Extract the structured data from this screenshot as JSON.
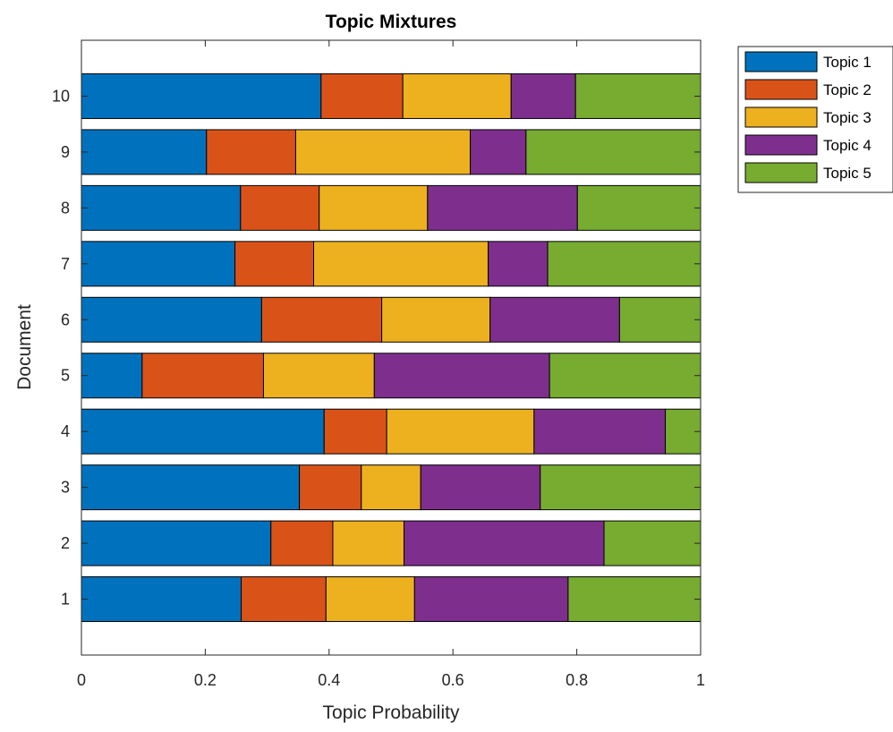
{
  "chart_data": {
    "type": "bar",
    "orientation": "horizontal",
    "stacked": true,
    "title": "Topic Mixtures",
    "xlabel": "Topic Probability",
    "ylabel": "Document",
    "xlim": [
      0,
      1
    ],
    "ylim": [
      0,
      11
    ],
    "xticks": [
      "0",
      "0.2",
      "0.4",
      "0.6",
      "0.8",
      "1"
    ],
    "categories": [
      "1",
      "2",
      "3",
      "4",
      "5",
      "6",
      "7",
      "8",
      "9",
      "10"
    ],
    "grid": false,
    "legend_position": "outside-top-right",
    "series": [
      {
        "name": "Topic 1",
        "color": "#0072BD",
        "values": [
          0.258,
          0.306,
          0.352,
          0.392,
          0.098,
          0.291,
          0.248,
          0.257,
          0.202,
          0.387
        ]
      },
      {
        "name": "Topic 2",
        "color": "#D95319",
        "values": [
          0.137,
          0.1,
          0.1,
          0.101,
          0.196,
          0.194,
          0.127,
          0.127,
          0.144,
          0.132
        ]
      },
      {
        "name": "Topic 3",
        "color": "#EDB120",
        "values": [
          0.143,
          0.115,
          0.096,
          0.238,
          0.179,
          0.175,
          0.282,
          0.175,
          0.282,
          0.175
        ]
      },
      {
        "name": "Topic 4",
        "color": "#7E2F8E",
        "values": [
          0.248,
          0.323,
          0.193,
          0.212,
          0.283,
          0.209,
          0.096,
          0.242,
          0.09,
          0.104
        ]
      },
      {
        "name": "Topic 5",
        "color": "#77AC30",
        "values": [
          0.214,
          0.156,
          0.259,
          0.057,
          0.244,
          0.131,
          0.247,
          0.199,
          0.282,
          0.202
        ]
      }
    ]
  }
}
